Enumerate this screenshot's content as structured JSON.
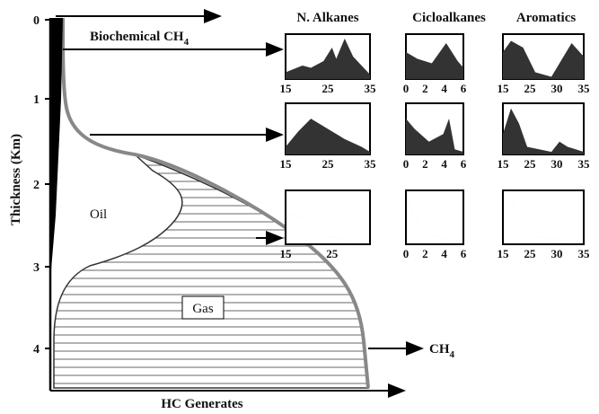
{
  "y_axis": {
    "label": "Thickness (Km)",
    "ticks": [
      0,
      1,
      2,
      3,
      4
    ]
  },
  "x_axis": {
    "label": "HC Generates"
  },
  "zones": {
    "biochemical": {
      "text": "Biochemical CH",
      "sub": "4"
    },
    "oil": "Oil",
    "gas": "Gas",
    "methane": {
      "text": "CH",
      "sub": "4"
    }
  },
  "columns": [
    "N. Alkanes",
    "Cicloalkanes",
    "Aromatics"
  ],
  "panels": [
    [
      [
        15,
        25,
        35
      ],
      [
        0,
        2,
        4,
        6
      ],
      [
        15,
        25,
        30,
        35
      ]
    ],
    [
      [
        15,
        25,
        35
      ],
      [
        0,
        2,
        4,
        6
      ],
      [
        15,
        25,
        30,
        35
      ]
    ],
    [
      [
        15,
        25
      ],
      [
        0,
        2,
        4,
        6
      ],
      [
        15,
        25,
        30,
        35
      ]
    ]
  ]
}
